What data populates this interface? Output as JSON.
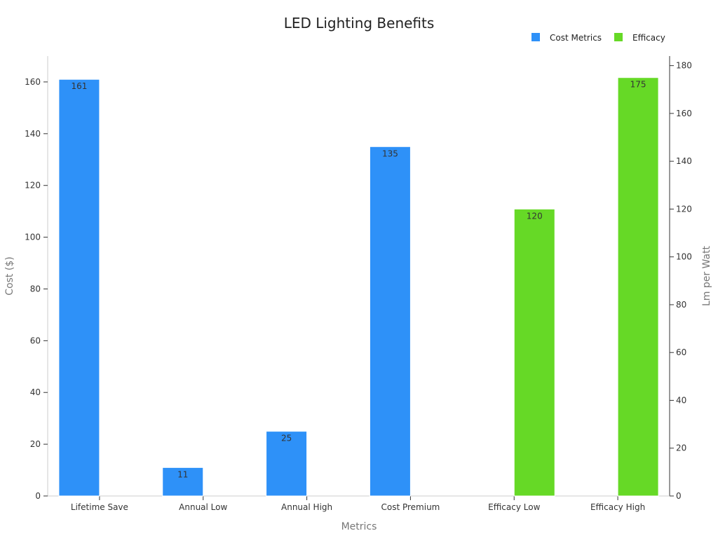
{
  "chart_data": {
    "type": "bar",
    "title": "LED Lighting Benefits",
    "xlabel": "Metrics",
    "ylabel_left": "Cost ($)",
    "ylabel_right": "Lm per Watt",
    "categories": [
      "Lifetime Save",
      "Annual Low",
      "Annual High",
      "Cost Premium",
      "Efficacy Low",
      "Efficacy High"
    ],
    "series": [
      {
        "name": "Cost Metrics",
        "axis": "left",
        "color": "#2e91f8",
        "values": [
          161,
          11,
          25,
          135,
          null,
          null
        ],
        "labels": [
          "161",
          "11",
          "25",
          "135",
          "",
          ""
        ]
      },
      {
        "name": "Efficacy",
        "axis": "right",
        "color": "#66d926",
        "values": [
          null,
          null,
          null,
          null,
          120,
          175
        ],
        "labels": [
          "",
          "",
          "",
          "",
          "120",
          "175"
        ]
      }
    ],
    "ylim_left": [
      0,
      170
    ],
    "ylim_right": [
      0,
      184
    ],
    "yticks_left": [
      "0",
      "20",
      "40",
      "60",
      "80",
      "100",
      "120",
      "140",
      "160"
    ],
    "yticks_right": [
      "0",
      "20",
      "40",
      "60",
      "80",
      "100",
      "120",
      "140",
      "160",
      "180"
    ],
    "legend_position": "top-right",
    "grid": false
  }
}
